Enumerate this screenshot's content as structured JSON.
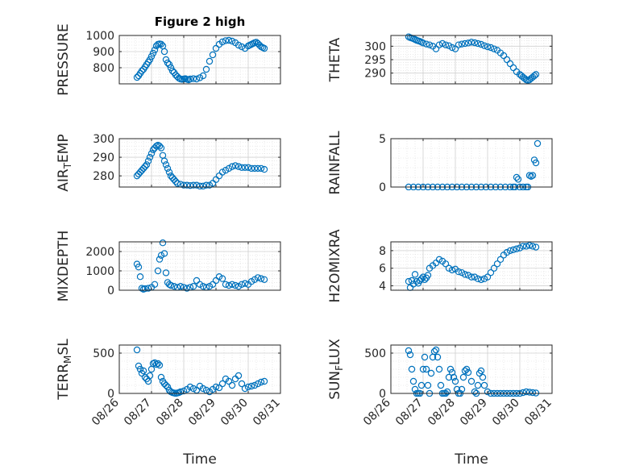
{
  "colors": {
    "marker": "#0072BD",
    "axis": "#262626",
    "grid": "#dcdcdc"
  },
  "chart_data": [
    {
      "type": "scatter",
      "title": "Figure 2 high",
      "ylabel": "PRESSURE",
      "xlabel": "",
      "xlim": [
        0,
        5
      ],
      "ylim": [
        700,
        1000
      ],
      "yticks": [
        800,
        900,
        1000
      ],
      "yticklabels": [
        "800",
        "900",
        "1000"
      ],
      "xticks": [
        0,
        1,
        2,
        3,
        4,
        5
      ],
      "xticklabels": [],
      "x": [
        0.55,
        0.6,
        0.65,
        0.7,
        0.75,
        0.8,
        0.85,
        0.9,
        0.95,
        1.0,
        1.05,
        1.1,
        1.15,
        1.2,
        1.25,
        1.3,
        1.35,
        1.4,
        1.45,
        1.5,
        1.55,
        1.6,
        1.65,
        1.7,
        1.75,
        1.8,
        1.85,
        1.9,
        1.95,
        2.0,
        2.05,
        2.1,
        2.15,
        2.2,
        2.3,
        2.4,
        2.5,
        2.6,
        2.7,
        2.8,
        2.9,
        3.0,
        3.1,
        3.2,
        3.3,
        3.4,
        3.5,
        3.6,
        3.7,
        3.8,
        3.9,
        4.0,
        4.05,
        4.1,
        4.15,
        4.2,
        4.25,
        4.3,
        4.35,
        4.4,
        4.45,
        4.5
      ],
      "y": [
        740,
        750,
        765,
        780,
        790,
        805,
        820,
        835,
        850,
        870,
        890,
        910,
        935,
        945,
        948,
        946,
        935,
        900,
        850,
        830,
        820,
        800,
        780,
        770,
        755,
        745,
        735,
        730,
        728,
        730,
        732,
        728,
        725,
        730,
        732,
        730,
        738,
        750,
        790,
        840,
        880,
        920,
        945,
        960,
        968,
        970,
        965,
        955,
        940,
        930,
        920,
        935,
        940,
        945,
        950,
        955,
        958,
        950,
        940,
        930,
        925,
        920
      ]
    },
    {
      "type": "scatter",
      "title": "",
      "ylabel": "THETA",
      "xlabel": "",
      "xlim": [
        0,
        5
      ],
      "ylim": [
        286,
        304
      ],
      "yticks": [
        290,
        295,
        300
      ],
      "yticklabels": [
        "290",
        "295",
        "300"
      ],
      "xticks": [
        0,
        1,
        2,
        3,
        4,
        5
      ],
      "xticklabels": [],
      "x": [
        0.55,
        0.6,
        0.65,
        0.7,
        0.75,
        0.8,
        0.85,
        0.9,
        0.95,
        1.0,
        1.1,
        1.2,
        1.3,
        1.4,
        1.5,
        1.6,
        1.7,
        1.8,
        1.9,
        2.0,
        2.1,
        2.2,
        2.3,
        2.4,
        2.5,
        2.6,
        2.7,
        2.8,
        2.9,
        3.0,
        3.1,
        3.2,
        3.3,
        3.4,
        3.5,
        3.6,
        3.7,
        3.8,
        3.9,
        4.0,
        4.05,
        4.1,
        4.15,
        4.2,
        4.25,
        4.3,
        4.35,
        4.4,
        4.45,
        4.5
      ],
      "y": [
        303.5,
        303.2,
        303,
        302.8,
        302.5,
        302.2,
        302,
        301.8,
        301.5,
        301.2,
        300.8,
        300.5,
        300,
        299,
        300.5,
        301,
        300.5,
        300.2,
        299.5,
        299,
        300.5,
        300.8,
        301,
        301.2,
        301.5,
        301.3,
        301,
        300.7,
        300.2,
        299.8,
        299.5,
        299,
        298.5,
        297.5,
        296.5,
        295,
        293.5,
        292,
        290.5,
        289.5,
        289,
        288.5,
        288,
        287.5,
        287.3,
        287.5,
        288,
        288.5,
        289,
        289.5
      ]
    },
    {
      "type": "scatter",
      "title": "",
      "ylabel": "AIR_TEMP",
      "xlabel": "",
      "xlim": [
        0,
        5
      ],
      "ylim": [
        274,
        300
      ],
      "yticks": [
        280,
        290,
        300
      ],
      "yticklabels": [
        "280",
        "290",
        "300"
      ],
      "xticks": [
        0,
        1,
        2,
        3,
        4,
        5
      ],
      "xticklabels": [],
      "x": [
        0.55,
        0.6,
        0.65,
        0.7,
        0.75,
        0.8,
        0.85,
        0.9,
        0.95,
        1.0,
        1.05,
        1.1,
        1.15,
        1.2,
        1.25,
        1.3,
        1.35,
        1.4,
        1.45,
        1.5,
        1.55,
        1.6,
        1.65,
        1.7,
        1.75,
        1.8,
        1.9,
        2.0,
        2.1,
        2.2,
        2.3,
        2.4,
        2.5,
        2.6,
        2.7,
        2.8,
        2.9,
        3.0,
        3.1,
        3.2,
        3.3,
        3.4,
        3.5,
        3.6,
        3.7,
        3.8,
        3.9,
        4.0,
        4.1,
        4.2,
        4.3,
        4.4,
        4.5
      ],
      "y": [
        280,
        281,
        282,
        283,
        284,
        285,
        286,
        288,
        290,
        292,
        294,
        295,
        296,
        296.5,
        296,
        295,
        291,
        288,
        286,
        284,
        282,
        280,
        279,
        278,
        277,
        276,
        275.5,
        275,
        275,
        274.8,
        275,
        275,
        274.5,
        274.5,
        275,
        275,
        276,
        278,
        280,
        282,
        283,
        284,
        285,
        285.5,
        285,
        284.5,
        284.5,
        284.5,
        284,
        284,
        284,
        284,
        283.5
      ]
    },
    {
      "type": "scatter",
      "title": "",
      "ylabel": "RAINFALL",
      "xlabel": "",
      "xlim": [
        0,
        5
      ],
      "ylim": [
        0,
        5
      ],
      "yticks": [
        0,
        5
      ],
      "yticklabels": [
        "0",
        "5"
      ],
      "xticks": [
        0,
        1,
        2,
        3,
        4,
        5
      ],
      "xticklabels": [],
      "x": [
        0.55,
        0.7,
        0.85,
        1.0,
        1.15,
        1.3,
        1.45,
        1.6,
        1.75,
        1.9,
        2.05,
        2.2,
        2.35,
        2.5,
        2.65,
        2.8,
        2.95,
        3.1,
        3.25,
        3.4,
        3.55,
        3.7,
        3.8,
        3.85,
        3.9,
        3.95,
        4.0,
        4.1,
        4.2,
        4.25,
        4.3,
        4.35,
        4.4,
        4.45,
        4.5,
        4.55
      ],
      "y": [
        0,
        0,
        0,
        0,
        0,
        0,
        0,
        0,
        0,
        0,
        0,
        0,
        0,
        0,
        0,
        0,
        0,
        0,
        0,
        0,
        0,
        0,
        0,
        0,
        1,
        0.8,
        0,
        0,
        0,
        0,
        1.2,
        1.1,
        1.2,
        2.8,
        2.5,
        4.5
      ]
    },
    {
      "type": "scatter",
      "title": "",
      "ylabel": "MIXDEPTH",
      "xlabel": "",
      "xlim": [
        0,
        5
      ],
      "ylim": [
        0,
        2500
      ],
      "yticks": [
        0,
        1000,
        2000
      ],
      "yticklabels": [
        "0",
        "1000",
        "2000"
      ],
      "xticks": [
        0,
        1,
        2,
        3,
        4,
        5
      ],
      "xticklabels": [],
      "x": [
        0.55,
        0.6,
        0.65,
        0.7,
        0.75,
        0.8,
        0.9,
        1.0,
        1.1,
        1.2,
        1.25,
        1.3,
        1.35,
        1.4,
        1.45,
        1.5,
        1.55,
        1.6,
        1.7,
        1.8,
        1.9,
        2.0,
        2.1,
        2.2,
        2.3,
        2.4,
        2.5,
        2.6,
        2.7,
        2.8,
        2.9,
        3.0,
        3.1,
        3.2,
        3.3,
        3.4,
        3.5,
        3.6,
        3.7,
        3.8,
        3.9,
        4.0,
        4.1,
        4.2,
        4.3,
        4.4,
        4.5
      ],
      "y": [
        1350,
        1200,
        700,
        100,
        50,
        80,
        100,
        150,
        300,
        1000,
        1600,
        1800,
        2450,
        1900,
        900,
        400,
        300,
        250,
        200,
        150,
        200,
        150,
        100,
        150,
        200,
        500,
        300,
        200,
        150,
        200,
        300,
        500,
        700,
        600,
        300,
        250,
        300,
        250,
        200,
        300,
        350,
        300,
        450,
        550,
        650,
        600,
        550
      ]
    },
    {
      "type": "scatter",
      "title": "",
      "ylabel": "H2OMIXRA",
      "xlabel": "",
      "xlim": [
        0,
        5
      ],
      "ylim": [
        3.5,
        9
      ],
      "yticks": [
        4,
        6,
        8
      ],
      "yticklabels": [
        "4",
        "6",
        "8"
      ],
      "xticks": [
        0,
        1,
        2,
        3,
        4,
        5
      ],
      "xticklabels": [],
      "x": [
        0.55,
        0.6,
        0.65,
        0.7,
        0.75,
        0.8,
        0.85,
        0.9,
        0.95,
        1.0,
        1.05,
        1.1,
        1.15,
        1.2,
        1.3,
        1.4,
        1.5,
        1.6,
        1.7,
        1.8,
        1.9,
        2.0,
        2.1,
        2.2,
        2.3,
        2.4,
        2.5,
        2.6,
        2.7,
        2.8,
        2.9,
        3.0,
        3.1,
        3.2,
        3.3,
        3.4,
        3.5,
        3.6,
        3.7,
        3.8,
        3.9,
        4.0,
        4.1,
        4.2,
        4.3,
        4.4,
        4.5
      ],
      "y": [
        4.5,
        3.8,
        4.6,
        4.2,
        5.3,
        4.5,
        4.3,
        4.6,
        4.8,
        5.0,
        4.7,
        4.9,
        5.2,
        6.0,
        6.3,
        6.6,
        7.0,
        6.8,
        6.5,
        6.0,
        5.8,
        5.9,
        5.6,
        5.5,
        5.3,
        5.2,
        5.0,
        5.0,
        4.8,
        4.7,
        4.8,
        5.0,
        5.5,
        6.0,
        6.5,
        7.0,
        7.5,
        7.8,
        8.0,
        8.1,
        8.2,
        8.3,
        8.5,
        8.5,
        8.6,
        8.5,
        8.4
      ]
    },
    {
      "type": "scatter",
      "title": "",
      "ylabel": "TERR_MSL",
      "xlabel": "Time",
      "xlim": [
        0,
        5
      ],
      "ylim": [
        0,
        600
      ],
      "yticks": [
        0,
        500
      ],
      "yticklabels": [
        "0",
        "500"
      ],
      "xticks": [
        0,
        1,
        2,
        3,
        4,
        5
      ],
      "xticklabels": [
        "08/26",
        "08/27",
        "08/28",
        "08/29",
        "08/30",
        "08/31"
      ],
      "x": [
        0.55,
        0.6,
        0.65,
        0.7,
        0.75,
        0.8,
        0.85,
        0.9,
        0.95,
        1.0,
        1.05,
        1.1,
        1.15,
        1.2,
        1.25,
        1.3,
        1.35,
        1.4,
        1.45,
        1.5,
        1.55,
        1.6,
        1.65,
        1.7,
        1.75,
        1.8,
        1.85,
        1.9,
        2.0,
        2.1,
        2.2,
        2.3,
        2.4,
        2.5,
        2.6,
        2.7,
        2.8,
        2.9,
        3.0,
        3.1,
        3.2,
        3.3,
        3.4,
        3.5,
        3.6,
        3.7,
        3.8,
        3.9,
        4.0,
        4.1,
        4.2,
        4.3,
        4.4,
        4.5
      ],
      "y": [
        540,
        340,
        300,
        250,
        280,
        200,
        180,
        150,
        220,
        300,
        370,
        380,
        360,
        370,
        350,
        200,
        150,
        120,
        100,
        80,
        40,
        20,
        10,
        5,
        0,
        5,
        10,
        20,
        30,
        50,
        80,
        60,
        40,
        90,
        60,
        40,
        20,
        50,
        80,
        70,
        120,
        180,
        150,
        100,
        180,
        220,
        120,
        60,
        80,
        90,
        100,
        120,
        140,
        150
      ]
    },
    {
      "type": "scatter",
      "title": "",
      "ylabel": "SUN_FLUX",
      "xlabel": "Time",
      "xlim": [
        0,
        5
      ],
      "ylim": [
        0,
        600
      ],
      "yticks": [
        0,
        500
      ],
      "yticklabels": [
        "0",
        "500"
      ],
      "xticks": [
        0,
        1,
        2,
        3,
        4,
        5
      ],
      "xticklabels": [
        "08/26",
        "08/27",
        "08/28",
        "08/29",
        "08/30",
        "08/31"
      ],
      "x": [
        0.55,
        0.6,
        0.65,
        0.7,
        0.75,
        0.8,
        0.85,
        0.9,
        0.95,
        1.0,
        1.05,
        1.1,
        1.15,
        1.2,
        1.25,
        1.3,
        1.35,
        1.4,
        1.45,
        1.5,
        1.55,
        1.6,
        1.65,
        1.7,
        1.75,
        1.8,
        1.85,
        1.9,
        1.95,
        2.0,
        2.05,
        2.1,
        2.15,
        2.2,
        2.25,
        2.3,
        2.35,
        2.4,
        2.5,
        2.6,
        2.65,
        2.7,
        2.75,
        2.8,
        2.85,
        2.9,
        3.0,
        3.1,
        3.2,
        3.3,
        3.4,
        3.5,
        3.6,
        3.7,
        3.8,
        3.9,
        4.0,
        4.1,
        4.2,
        4.3,
        4.4,
        4.5
      ],
      "y": [
        530,
        480,
        300,
        150,
        50,
        0,
        0,
        0,
        100,
        300,
        450,
        300,
        100,
        0,
        250,
        450,
        520,
        540,
        450,
        300,
        100,
        0,
        0,
        0,
        20,
        200,
        300,
        260,
        200,
        150,
        50,
        0,
        0,
        50,
        200,
        280,
        300,
        260,
        150,
        20,
        0,
        100,
        250,
        280,
        200,
        100,
        20,
        0,
        0,
        0,
        0,
        0,
        0,
        0,
        0,
        0,
        0,
        10,
        20,
        15,
        10,
        5
      ]
    }
  ]
}
